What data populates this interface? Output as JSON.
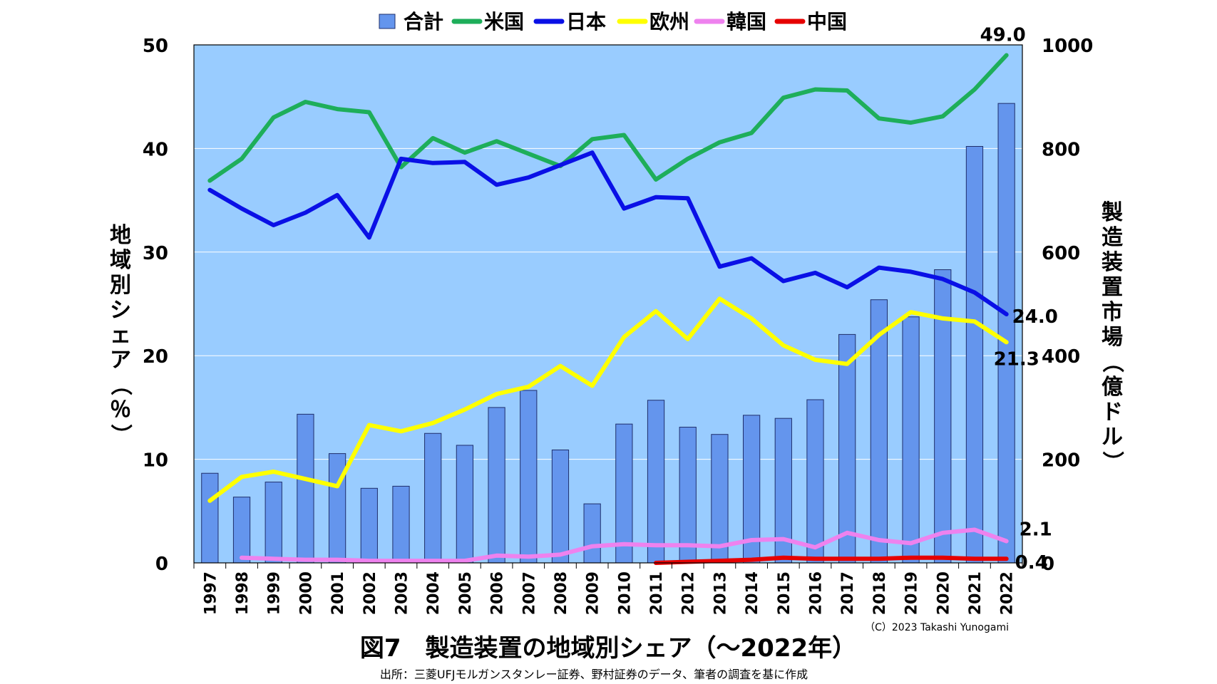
{
  "chart_data": {
    "type": "bar+line",
    "title": "図7　製造装置の地域別シェア（～2022年）",
    "source": "出所：三菱UFJモルガンスタンレー証券、野村証券のデータ、筆者の調査を基に作成",
    "copyright": "（C）2023 Takashi Yunogami",
    "ylabel_left": "地域別シェア（％）",
    "ylabel_right": "製造装置市場（億ドル）",
    "ylim_left": [
      0,
      50
    ],
    "ylim_right": [
      0,
      1000
    ],
    "yticks_left": [
      "0",
      "10",
      "20",
      "30",
      "40",
      "50"
    ],
    "yticks_right": [
      "0",
      "200",
      "400",
      "600",
      "800",
      "1000"
    ],
    "categories": [
      "1997",
      "1998",
      "1999",
      "2000",
      "2001",
      "2002",
      "2003",
      "2004",
      "2005",
      "2006",
      "2007",
      "2008",
      "2009",
      "2010",
      "2011",
      "2012",
      "2013",
      "2014",
      "2015",
      "2016",
      "2017",
      "2018",
      "2019",
      "2020",
      "2021",
      "2022"
    ],
    "bar": {
      "name": "合計",
      "color": "#6495ED",
      "values": [
        173,
        127,
        156,
        287,
        211,
        144,
        148,
        250,
        227,
        300,
        333,
        218,
        114,
        268,
        314,
        262,
        248,
        285,
        279,
        315,
        441,
        508,
        475,
        566,
        804,
        887
      ]
    },
    "series": [
      {
        "name": "米国",
        "color": "#1EAE5A",
        "values": [
          36.9,
          39.0,
          43.0,
          44.5,
          43.8,
          43.5,
          38.2,
          41.0,
          39.6,
          40.7,
          39.5,
          38.3,
          40.9,
          41.3,
          37.0,
          39.0,
          40.6,
          41.5,
          44.9,
          45.7,
          45.6,
          42.9,
          42.5,
          43.1,
          45.7,
          49.0
        ]
      },
      {
        "name": "日本",
        "color": "#0A10E6",
        "values": [
          36.0,
          34.2,
          32.6,
          33.8,
          35.5,
          31.4,
          39.0,
          38.6,
          38.7,
          36.5,
          37.2,
          38.4,
          39.6,
          34.2,
          35.3,
          35.2,
          28.6,
          29.4,
          27.2,
          28.0,
          26.6,
          28.5,
          28.1,
          27.4,
          26.1,
          24.0
        ]
      },
      {
        "name": "欧州",
        "color": "#FFFF00",
        "values": [
          6.0,
          8.3,
          8.8,
          8.1,
          7.4,
          13.3,
          12.7,
          13.5,
          14.8,
          16.3,
          17.0,
          19.0,
          17.1,
          21.8,
          24.3,
          21.6,
          25.5,
          23.6,
          21.0,
          19.6,
          19.2,
          22.0,
          24.2,
          23.6,
          23.3,
          21.3
        ]
      },
      {
        "name": "韓国",
        "color": "#EE82EE",
        "values": [
          null,
          0.5,
          0.4,
          0.3,
          0.3,
          0.2,
          0.2,
          0.2,
          0.2,
          0.7,
          0.6,
          0.8,
          1.6,
          1.8,
          1.7,
          1.7,
          1.6,
          2.2,
          2.3,
          1.5,
          2.9,
          2.2,
          1.9,
          2.9,
          3.2,
          2.1
        ]
      },
      {
        "name": "中国",
        "color": "#E60000",
        "values": [
          null,
          null,
          null,
          null,
          null,
          null,
          null,
          null,
          null,
          null,
          null,
          null,
          null,
          null,
          0.0,
          0.1,
          0.2,
          0.3,
          0.5,
          0.4,
          0.4,
          0.4,
          0.5,
          0.5,
          0.4,
          0.4
        ]
      }
    ],
    "data_labels": [
      {
        "series": "米国",
        "text": "49.0"
      },
      {
        "series": "日本",
        "text": "24.0"
      },
      {
        "series": "欧州",
        "text": "21.3"
      },
      {
        "series": "韓国",
        "text": "2.1"
      },
      {
        "series": "中国",
        "text": "0.4"
      }
    ],
    "grid": true,
    "legend": "top"
  }
}
